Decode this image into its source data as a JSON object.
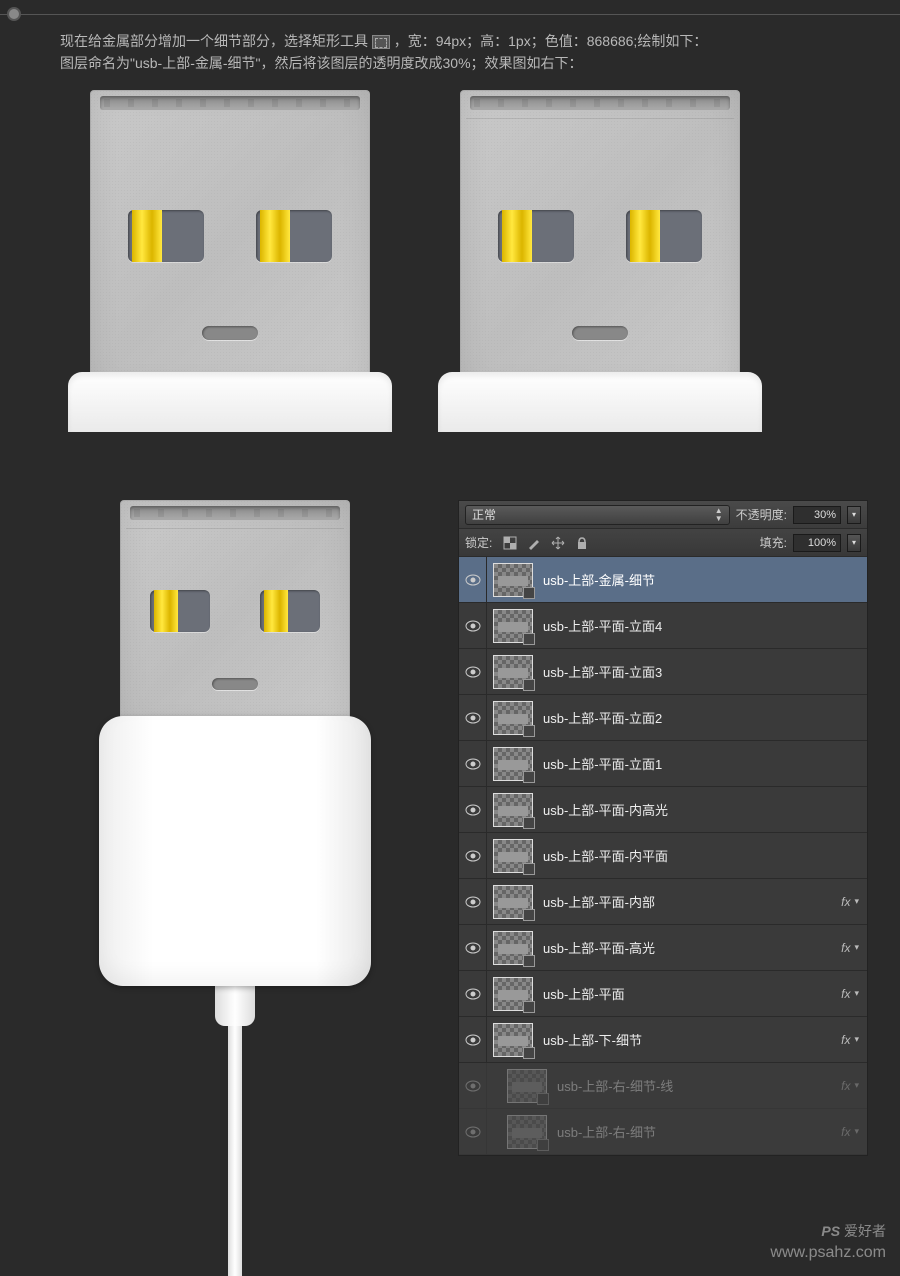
{
  "instructions": {
    "line1_a": "现在给金属部分增加一个细节部分，选择矩形工具 ",
    "line1_b": "，宽：94px；高：1px；色值：868686;绘制如下：",
    "line2": "图层命名为\"usb-上部-金属-细节\"，然后将该图层的透明度改成30%；效果图如右下："
  },
  "panel": {
    "blend_mode": "正常",
    "opacity_label": "不透明度:",
    "opacity_value": "30%",
    "lock_label": "锁定:",
    "fill_label": "填充:",
    "fill_value": "100%"
  },
  "layers": [
    {
      "name": "usb-上部-金属-细节",
      "visible": true,
      "selected": true,
      "fx": false,
      "dim": false,
      "indent": 0
    },
    {
      "name": "usb-上部-平面-立面4",
      "visible": true,
      "selected": false,
      "fx": false,
      "dim": false,
      "indent": 0
    },
    {
      "name": "usb-上部-平面-立面3",
      "visible": true,
      "selected": false,
      "fx": false,
      "dim": false,
      "indent": 0
    },
    {
      "name": "usb-上部-平面-立面2",
      "visible": true,
      "selected": false,
      "fx": false,
      "dim": false,
      "indent": 0
    },
    {
      "name": "usb-上部-平面-立面1",
      "visible": true,
      "selected": false,
      "fx": false,
      "dim": false,
      "indent": 0
    },
    {
      "name": "usb-上部-平面-内高光",
      "visible": true,
      "selected": false,
      "fx": false,
      "dim": false,
      "indent": 0
    },
    {
      "name": "usb-上部-平面-内平面",
      "visible": true,
      "selected": false,
      "fx": false,
      "dim": false,
      "indent": 0
    },
    {
      "name": "usb-上部-平面-内部",
      "visible": true,
      "selected": false,
      "fx": true,
      "dim": false,
      "indent": 0
    },
    {
      "name": "usb-上部-平面-高光",
      "visible": true,
      "selected": false,
      "fx": true,
      "dim": false,
      "indent": 0
    },
    {
      "name": "usb-上部-平面",
      "visible": true,
      "selected": false,
      "fx": true,
      "dim": false,
      "indent": 0
    },
    {
      "name": "usb-上部-下-细节",
      "visible": true,
      "selected": false,
      "fx": true,
      "dim": false,
      "indent": 0
    },
    {
      "name": "usb-上部-右-细节-线",
      "visible": true,
      "selected": false,
      "fx": true,
      "dim": true,
      "indent": 1
    },
    {
      "name": "usb-上部-右-细节",
      "visible": true,
      "selected": false,
      "fx": true,
      "dim": true,
      "indent": 1
    }
  ],
  "watermark": {
    "line1": "PS 爱好者",
    "line2": "www.psahz.com"
  },
  "colors": {
    "bg": "#2a2a2a",
    "panel": "#3d3d3d",
    "selected": "#5a6e88",
    "text": "#dddddd",
    "detail_rect": "#868686"
  }
}
